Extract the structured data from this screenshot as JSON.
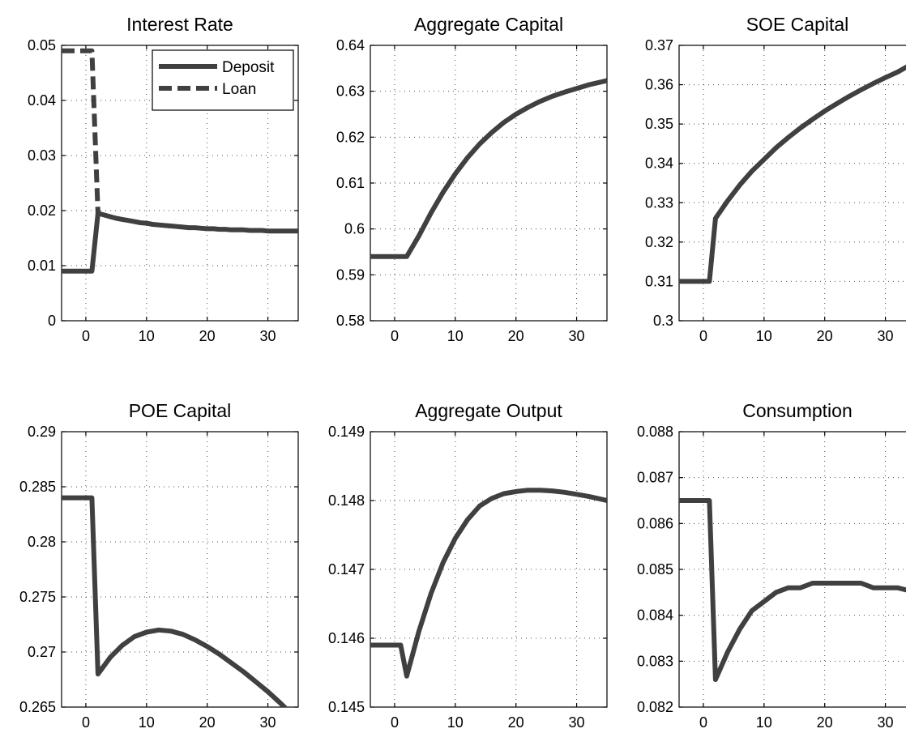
{
  "chart_data": [
    {
      "type": "line",
      "title": "Interest Rate",
      "xlim": [
        -4,
        35
      ],
      "ylim": [
        0,
        0.05
      ],
      "xticks": [
        0,
        10,
        20,
        30
      ],
      "yticks": [
        0,
        0.01,
        0.02,
        0.03,
        0.04,
        0.05
      ],
      "ytick_labels": [
        "0",
        "0.01",
        "0.02",
        "0.03",
        "0.04",
        "0.05"
      ],
      "grid": true,
      "legend": "top-right",
      "series": [
        {
          "name": "Deposit",
          "style": "solid",
          "x": [
            -4,
            -3,
            -2,
            -1,
            0,
            1,
            2,
            3,
            4,
            5,
            6,
            7,
            8,
            9,
            10,
            11,
            12,
            13,
            14,
            15,
            16,
            17,
            18,
            19,
            20,
            21,
            22,
            23,
            24,
            25,
            26,
            27,
            28,
            29,
            30,
            31,
            32,
            33,
            34,
            35
          ],
          "values": [
            0.009,
            0.009,
            0.009,
            0.009,
            0.009,
            0.009,
            0.0195,
            0.0192,
            0.0189,
            0.0186,
            0.0184,
            0.0182,
            0.018,
            0.0178,
            0.0177,
            0.0175,
            0.0174,
            0.0173,
            0.0172,
            0.0171,
            0.017,
            0.0169,
            0.0169,
            0.0168,
            0.0167,
            0.0167,
            0.0166,
            0.0166,
            0.0165,
            0.0165,
            0.0165,
            0.0164,
            0.0164,
            0.0164,
            0.0163,
            0.0163,
            0.0163,
            0.0163,
            0.0163,
            0.0163
          ]
        },
        {
          "name": "Loan",
          "style": "dashed",
          "x": [
            -4,
            -3,
            -2,
            -1,
            0,
            1,
            2
          ],
          "values": [
            0.049,
            0.049,
            0.049,
            0.049,
            0.049,
            0.049,
            0.0195
          ]
        }
      ]
    },
    {
      "type": "line",
      "title": "Aggregate Capital",
      "xlim": [
        -4,
        35
      ],
      "ylim": [
        0.58,
        0.64
      ],
      "xticks": [
        0,
        10,
        20,
        30
      ],
      "yticks": [
        0.58,
        0.59,
        0.6,
        0.61,
        0.62,
        0.63,
        0.64
      ],
      "ytick_labels": [
        "0.58",
        "0.59",
        "0.6",
        "0.61",
        "0.62",
        "0.63",
        "0.64"
      ],
      "grid": true,
      "series": [
        {
          "style": "solid",
          "x": [
            -4,
            -2,
            0,
            2,
            4,
            6,
            8,
            10,
            12,
            14,
            16,
            18,
            20,
            22,
            24,
            26,
            28,
            30,
            32,
            35
          ],
          "values": [
            0.594,
            0.594,
            0.594,
            0.594,
            0.5985,
            0.6035,
            0.608,
            0.612,
            0.6155,
            0.6185,
            0.621,
            0.6232,
            0.625,
            0.6265,
            0.6278,
            0.6289,
            0.6298,
            0.6306,
            0.6314,
            0.6323
          ]
        }
      ]
    },
    {
      "type": "line",
      "title": "SOE Capital",
      "xlim": [
        -4,
        35
      ],
      "ylim": [
        0.3,
        0.37
      ],
      "xticks": [
        0,
        10,
        20,
        30
      ],
      "yticks": [
        0.3,
        0.31,
        0.32,
        0.33,
        0.34,
        0.35,
        0.36,
        0.37
      ],
      "ytick_labels": [
        "0.3",
        "0.31",
        "0.32",
        "0.33",
        "0.34",
        "0.35",
        "0.36",
        "0.37"
      ],
      "grid": true,
      "series": [
        {
          "style": "solid",
          "x": [
            -4,
            -2,
            0,
            1,
            2,
            4,
            6,
            8,
            10,
            12,
            14,
            16,
            18,
            20,
            22,
            24,
            26,
            28,
            30,
            32,
            35
          ],
          "values": [
            0.31,
            0.31,
            0.31,
            0.31,
            0.326,
            0.3305,
            0.3345,
            0.338,
            0.341,
            0.344,
            0.3466,
            0.349,
            0.3512,
            0.3533,
            0.3552,
            0.357,
            0.3587,
            0.3603,
            0.3618,
            0.3632,
            0.3658
          ]
        }
      ]
    },
    {
      "type": "line",
      "title": "POE Capital",
      "xlim": [
        -4,
        35
      ],
      "ylim": [
        0.265,
        0.29
      ],
      "xticks": [
        0,
        10,
        20,
        30
      ],
      "yticks": [
        0.265,
        0.27,
        0.275,
        0.28,
        0.285,
        0.29
      ],
      "ytick_labels": [
        "0.265",
        "0.27",
        "0.275",
        "0.28",
        "0.285",
        "0.29"
      ],
      "grid": true,
      "series": [
        {
          "style": "solid",
          "x": [
            -4,
            -2,
            0,
            1,
            2,
            4,
            6,
            8,
            10,
            12,
            14,
            16,
            18,
            20,
            22,
            24,
            26,
            28,
            30,
            32,
            35
          ],
          "values": [
            0.284,
            0.284,
            0.284,
            0.284,
            0.268,
            0.2695,
            0.2706,
            0.2714,
            0.2718,
            0.272,
            0.2719,
            0.2716,
            0.2711,
            0.2705,
            0.2698,
            0.269,
            0.2682,
            0.2673,
            0.2664,
            0.2654,
            0.2638
          ]
        }
      ]
    },
    {
      "type": "line",
      "title": "Aggregate Output",
      "xlim": [
        -4,
        35
      ],
      "ylim": [
        0.145,
        0.149
      ],
      "xticks": [
        0,
        10,
        20,
        30
      ],
      "yticks": [
        0.145,
        0.146,
        0.147,
        0.148,
        0.149
      ],
      "ytick_labels": [
        "0.145",
        "0.146",
        "0.147",
        "0.148",
        "0.149"
      ],
      "grid": true,
      "series": [
        {
          "style": "solid",
          "x": [
            -4,
            -2,
            0,
            1,
            2,
            4,
            6,
            8,
            10,
            12,
            14,
            16,
            18,
            20,
            22,
            24,
            26,
            28,
            30,
            32,
            35
          ],
          "values": [
            0.1459,
            0.1459,
            0.1459,
            0.1459,
            0.14545,
            0.1461,
            0.14665,
            0.1471,
            0.14745,
            0.14772,
            0.14792,
            0.14803,
            0.1481,
            0.14813,
            0.14815,
            0.14815,
            0.14814,
            0.14812,
            0.14809,
            0.14806,
            0.148
          ]
        }
      ]
    },
    {
      "type": "line",
      "title": "Consumption",
      "xlim": [
        -4,
        35
      ],
      "ylim": [
        0.082,
        0.088
      ],
      "xticks": [
        0,
        10,
        20,
        30
      ],
      "yticks": [
        0.082,
        0.083,
        0.084,
        0.085,
        0.086,
        0.087,
        0.088
      ],
      "ytick_labels": [
        "0.082",
        "0.083",
        "0.084",
        "0.085",
        "0.086",
        "0.087",
        "0.088"
      ],
      "grid": true,
      "series": [
        {
          "style": "solid",
          "x": [
            -4,
            -2,
            0,
            1,
            2,
            4,
            6,
            8,
            10,
            12,
            14,
            16,
            18,
            20,
            22,
            24,
            26,
            28,
            30,
            32,
            35
          ],
          "values": [
            0.0865,
            0.0865,
            0.0865,
            0.0865,
            0.0826,
            0.0832,
            0.0837,
            0.0841,
            0.0843,
            0.0845,
            0.0846,
            0.0846,
            0.0847,
            0.0847,
            0.0847,
            0.0847,
            0.0847,
            0.0846,
            0.0846,
            0.0846,
            0.0845
          ]
        }
      ]
    }
  ]
}
